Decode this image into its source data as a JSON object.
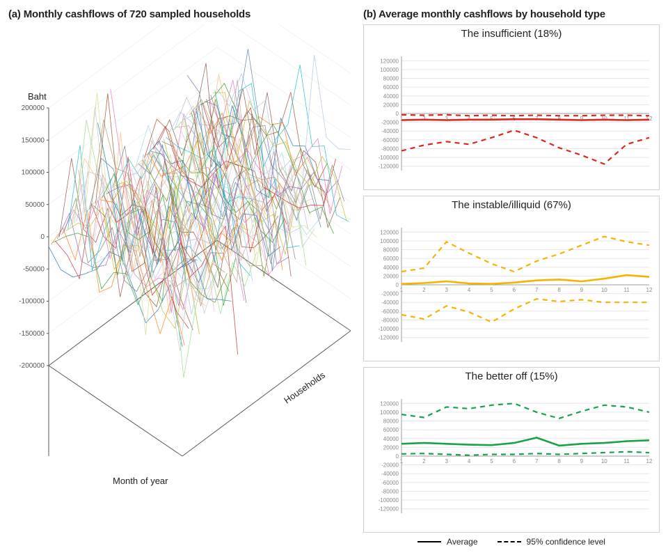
{
  "panel_a": {
    "title": "(a) Monthly cashflows of 720 sampled households",
    "type": "3d-line-multi-series",
    "z_axis_label": "Baht",
    "x_axis_label": "Month of year",
    "y_axis_label": "Households",
    "z_ticks": [
      -200000,
      -150000,
      -100000,
      -50000,
      0,
      50000,
      100000,
      150000,
      200000
    ],
    "x_range": [
      1,
      12
    ],
    "y_range": [
      1,
      720
    ],
    "line_colors": [
      "#1f77b4",
      "#ff7f0e",
      "#2ca02c",
      "#d62728",
      "#9467bd",
      "#8c564b",
      "#e377c2",
      "#7f7f7f",
      "#bcbd22",
      "#17becf",
      "#aec7e8",
      "#ffbb78",
      "#98df8a",
      "#c5b0d5",
      "#c49c94",
      "#f7b6d2",
      "#c7c7c7",
      "#dbdb8d",
      "#9edae5",
      "#5b7fa6",
      "#b29b63",
      "#6b8e23",
      "#a0522d"
    ],
    "line_width": 0.8,
    "background_color": "#ffffff",
    "axis_line_color": "#5a5a5a",
    "grid_color": "#bfbfbf",
    "tick_fontsize": 10,
    "label_fontsize": 13,
    "seeds": [
      11,
      23,
      37,
      41,
      53,
      61,
      73,
      83,
      97,
      103,
      113,
      127,
      139,
      151,
      163,
      173,
      181,
      193,
      199,
      211,
      223,
      233,
      241,
      251,
      263,
      271,
      283,
      293,
      311,
      317,
      331,
      347,
      353,
      367,
      379,
      389,
      401,
      419,
      431,
      443,
      457,
      467,
      479,
      491,
      503,
      521,
      541,
      557,
      563,
      571,
      587,
      599,
      607,
      617,
      631,
      643,
      653,
      661,
      677,
      683,
      701,
      719,
      733,
      743,
      757,
      769,
      787,
      797,
      811,
      823,
      829,
      839,
      853,
      863,
      877,
      883,
      907,
      919,
      929,
      941
    ]
  },
  "panel_b": {
    "title": "(b) Average monthly cashflows by household type",
    "x_ticks": [
      1,
      2,
      3,
      4,
      5,
      6,
      7,
      8,
      9,
      10,
      11,
      12
    ],
    "y_ticks": [
      -120000,
      -100000,
      -80000,
      -60000,
      -40000,
      -20000,
      0,
      20000,
      40000,
      60000,
      80000,
      100000,
      120000
    ],
    "ylim": [
      -130000,
      130000
    ],
    "xlim": [
      1,
      12
    ],
    "tick_fontsize": 8,
    "tick_color": "#8a8a8a",
    "grid_color": "#e6e6e6",
    "axis_color": "#9c9c9c",
    "background_color": "#ffffff",
    "line_width_avg": 2.6,
    "line_width_ci": 2.2,
    "dash_pattern": "7 6",
    "charts": [
      {
        "title": "The insufficient (18%)",
        "color": "#d9281e",
        "avg": [
          -15000,
          -14000,
          -15000,
          -14000,
          -14000,
          -13000,
          -13000,
          -14000,
          -15000,
          -14000,
          -15000,
          -14000
        ],
        "upper": [
          -3000,
          -4000,
          -3000,
          -5000,
          -4000,
          -5000,
          -4000,
          -5000,
          -5000,
          -4000,
          -4000,
          -5000
        ],
        "lower": [
          -85000,
          -72000,
          -64000,
          -70000,
          -55000,
          -38000,
          -55000,
          -78000,
          -95000,
          -115000,
          -70000,
          -55000
        ]
      },
      {
        "title": "The instable/illiquid (67%)",
        "color": "#f4b400",
        "avg": [
          2000,
          4000,
          8000,
          3000,
          2000,
          5000,
          10000,
          12000,
          8000,
          14000,
          22000,
          18000
        ],
        "upper": [
          30000,
          38000,
          98000,
          72000,
          48000,
          30000,
          54000,
          70000,
          90000,
          110000,
          98000,
          90000
        ],
        "lower": [
          -68000,
          -78000,
          -48000,
          -62000,
          -85000,
          -55000,
          -32000,
          -38000,
          -34000,
          -40000,
          -40000,
          -40000
        ]
      },
      {
        "title": "The better off (15%)",
        "color": "#1aa24a",
        "avg": [
          28000,
          30000,
          28000,
          26000,
          25000,
          30000,
          42000,
          24000,
          28000,
          30000,
          34000,
          36000
        ],
        "upper": [
          95000,
          88000,
          112000,
          108000,
          116000,
          120000,
          100000,
          86000,
          102000,
          116000,
          112000,
          100000
        ],
        "lower": [
          5000,
          6000,
          4000,
          2000,
          4000,
          4000,
          6000,
          4000,
          6000,
          8000,
          10000,
          8000
        ]
      }
    ],
    "legend": {
      "avg": "Average",
      "ci": "95% confidence level"
    }
  }
}
